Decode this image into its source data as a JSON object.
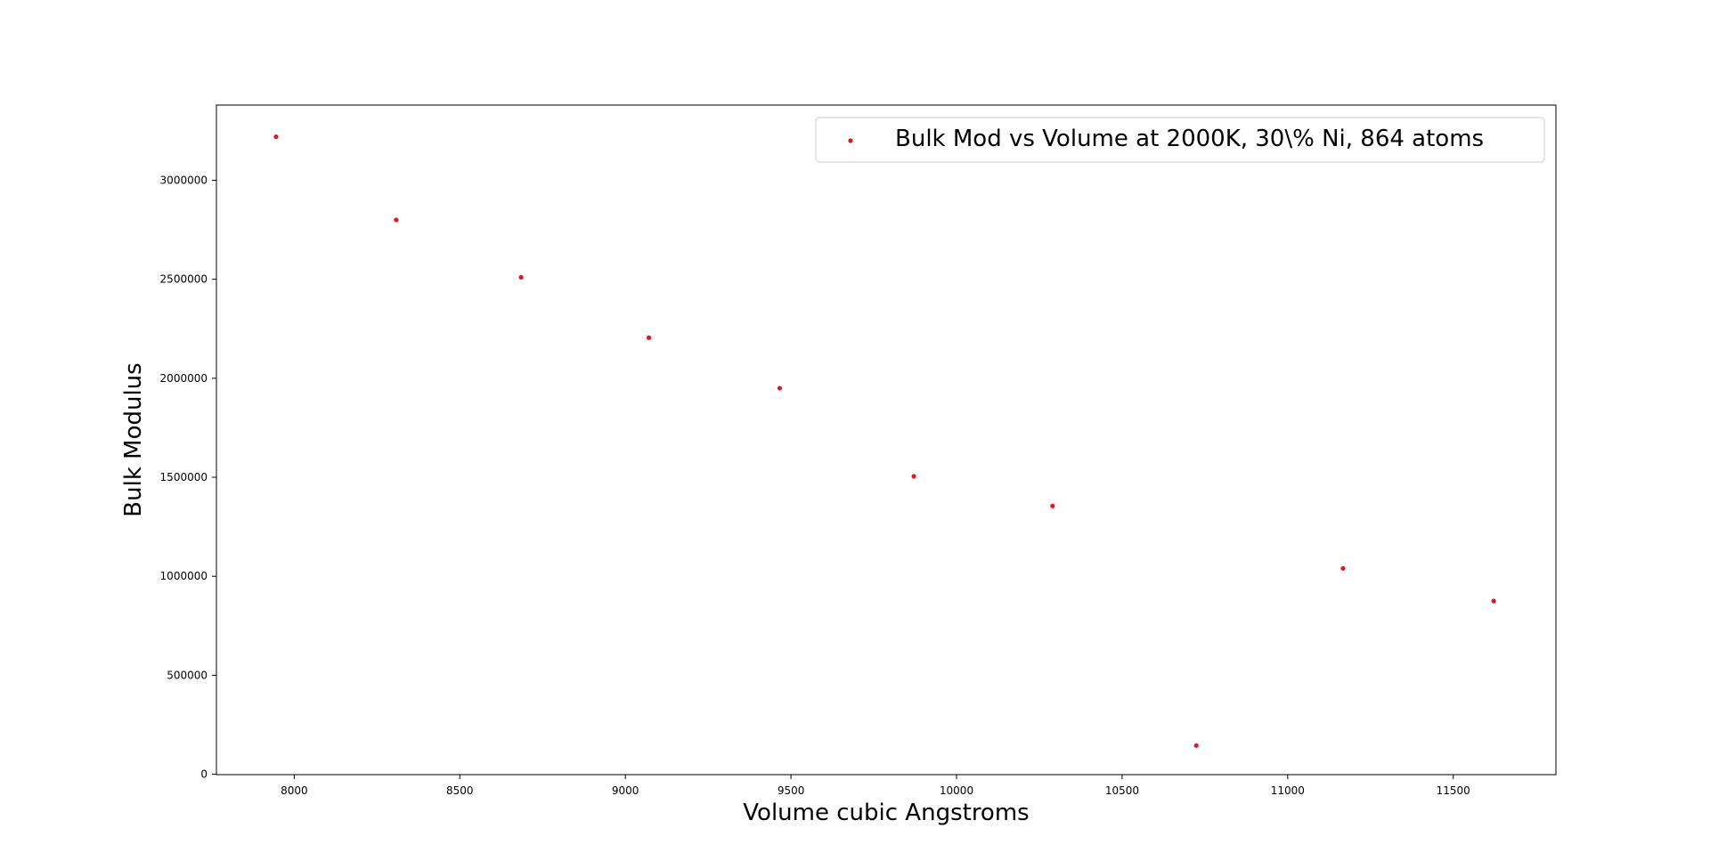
{
  "chart_data": {
    "type": "scatter",
    "title": "",
    "xlabel": "Volume cubic Angstroms",
    "ylabel": "Bulk Modulus",
    "xlim": [
      7765,
      11810
    ],
    "ylim": [
      -2000,
      3380000
    ],
    "xticks": [
      8000,
      8500,
      9000,
      9500,
      10000,
      10500,
      11000,
      11500
    ],
    "yticks": [
      0,
      500000,
      1000000,
      1500000,
      2000000,
      2500000,
      3000000
    ],
    "grid": false,
    "legend_location": "upper right",
    "series": [
      {
        "name": "Bulk Mod vs Volume at 2000K, 30\\% Ni, 864 atoms",
        "color": "#e8141c",
        "marker": "dot",
        "x": [
          7945,
          8308,
          8685,
          9071,
          9466,
          9871,
          10290,
          10724,
          11167,
          11622
        ],
        "y": [
          3220000,
          2800000,
          2510000,
          2205000,
          1950000,
          1505000,
          1355000,
          145000,
          1040000,
          875000
        ]
      }
    ]
  }
}
